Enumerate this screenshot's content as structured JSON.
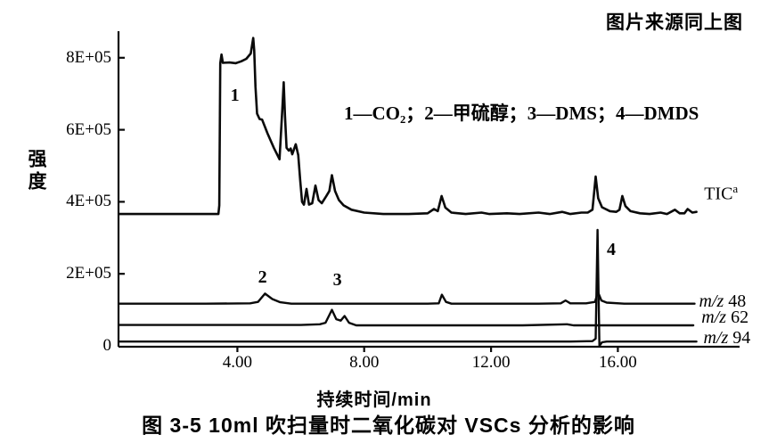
{
  "figure": {
    "source_note": "图片来源同上图",
    "legend": "1—CO₂；2—甲硫醇；3—DMS；4—DMDS",
    "caption": "图 3-5  10ml 吹扫量时二氧化碳对 VSCs 分析的影响"
  },
  "chart_data": {
    "type": "line",
    "title": "图 3-5 10ml 吹扫量时二氧化碳对 VSCs 分析的影响",
    "xlabel": "持续时间/min",
    "ylabel": "强度",
    "xlim": [
      0.25,
      19.9
    ],
    "ylim_counts": [
      0,
      880000
    ],
    "y_multiplier": 100000,
    "grid": false,
    "legend_position": "top-center-inside",
    "xticks": {
      "values": [
        4,
        8,
        12,
        16
      ],
      "labels": [
        "4.00",
        "8.00",
        "12.00",
        "16.00"
      ]
    },
    "yticks": {
      "values": [
        0,
        2,
        4,
        6,
        8
      ],
      "labels": [
        "0",
        "2E+05",
        "4E+05",
        "6E+05",
        "8E+05"
      ]
    },
    "peak_annotations": [
      {
        "label": "1",
        "compound": "CO₂",
        "t": 3.95,
        "intensity": 6.9
      },
      {
        "label": "2",
        "compound": "甲硫醇",
        "t": 4.82,
        "intensity": 1.85
      },
      {
        "label": "3",
        "compound": "DMS",
        "t": 7.18,
        "intensity": 1.78
      },
      {
        "label": "4",
        "compound": "DMDS",
        "t": 15.82,
        "intensity": 2.62
      }
    ],
    "series": [
      {
        "id": "tic",
        "label": {
          "text": "TIC",
          "sup": "a"
        },
        "label_pos": [
          18.72,
          4.35
        ],
        "stroke_width": 2.6,
        "points": [
          [
            0.26,
            3.66
          ],
          [
            1.0,
            3.66
          ],
          [
            2.0,
            3.66
          ],
          [
            3.0,
            3.66
          ],
          [
            3.4,
            3.66
          ],
          [
            3.43,
            3.9
          ],
          [
            3.46,
            7.85
          ],
          [
            3.5,
            8.09
          ],
          [
            3.54,
            7.86
          ],
          [
            3.75,
            7.87
          ],
          [
            3.95,
            7.85
          ],
          [
            4.12,
            7.9
          ],
          [
            4.28,
            7.97
          ],
          [
            4.42,
            8.12
          ],
          [
            4.5,
            8.55
          ],
          [
            4.53,
            8.2
          ],
          [
            4.57,
            7.2
          ],
          [
            4.62,
            6.45
          ],
          [
            4.7,
            6.3
          ],
          [
            4.78,
            6.28
          ],
          [
            4.95,
            5.9
          ],
          [
            5.15,
            5.5
          ],
          [
            5.33,
            5.18
          ],
          [
            5.42,
            6.6
          ],
          [
            5.46,
            7.32
          ],
          [
            5.5,
            6.4
          ],
          [
            5.55,
            5.5
          ],
          [
            5.62,
            5.42
          ],
          [
            5.68,
            5.48
          ],
          [
            5.73,
            5.32
          ],
          [
            5.84,
            5.6
          ],
          [
            5.92,
            5.3
          ],
          [
            5.98,
            4.6
          ],
          [
            6.04,
            4.0
          ],
          [
            6.1,
            3.92
          ],
          [
            6.18,
            4.36
          ],
          [
            6.26,
            3.92
          ],
          [
            6.36,
            3.96
          ],
          [
            6.46,
            4.45
          ],
          [
            6.56,
            4.05
          ],
          [
            6.66,
            3.96
          ],
          [
            6.8,
            4.15
          ],
          [
            6.9,
            4.3
          ],
          [
            6.98,
            4.74
          ],
          [
            7.08,
            4.3
          ],
          [
            7.2,
            4.05
          ],
          [
            7.35,
            3.9
          ],
          [
            7.6,
            3.78
          ],
          [
            8.0,
            3.7
          ],
          [
            8.6,
            3.66
          ],
          [
            9.4,
            3.66
          ],
          [
            10.0,
            3.68
          ],
          [
            10.2,
            3.8
          ],
          [
            10.32,
            3.74
          ],
          [
            10.44,
            4.16
          ],
          [
            10.56,
            3.84
          ],
          [
            10.75,
            3.7
          ],
          [
            11.2,
            3.66
          ],
          [
            11.7,
            3.7
          ],
          [
            11.95,
            3.66
          ],
          [
            12.5,
            3.68
          ],
          [
            12.9,
            3.66
          ],
          [
            13.5,
            3.7
          ],
          [
            13.85,
            3.66
          ],
          [
            14.25,
            3.72
          ],
          [
            14.5,
            3.66
          ],
          [
            14.85,
            3.7
          ],
          [
            15.05,
            3.7
          ],
          [
            15.2,
            3.78
          ],
          [
            15.3,
            4.7
          ],
          [
            15.38,
            4.1
          ],
          [
            15.5,
            3.85
          ],
          [
            15.75,
            3.74
          ],
          [
            15.95,
            3.72
          ],
          [
            16.05,
            3.78
          ],
          [
            16.14,
            4.16
          ],
          [
            16.24,
            3.88
          ],
          [
            16.4,
            3.74
          ],
          [
            16.7,
            3.68
          ],
          [
            17.0,
            3.66
          ],
          [
            17.35,
            3.7
          ],
          [
            17.55,
            3.66
          ],
          [
            17.8,
            3.78
          ],
          [
            17.95,
            3.68
          ],
          [
            18.1,
            3.68
          ],
          [
            18.2,
            3.8
          ],
          [
            18.35,
            3.7
          ],
          [
            18.48,
            3.72
          ]
        ]
      },
      {
        "id": "mz48",
        "label": {
          "italic": "m/z",
          "text": " 48"
        },
        "label_pos": [
          18.56,
          1.24
        ],
        "stroke_width": 2.4,
        "points": [
          [
            0.26,
            1.17
          ],
          [
            1.5,
            1.17
          ],
          [
            3.0,
            1.17
          ],
          [
            4.4,
            1.18
          ],
          [
            4.65,
            1.22
          ],
          [
            4.87,
            1.45
          ],
          [
            5.1,
            1.3
          ],
          [
            5.35,
            1.21
          ],
          [
            5.7,
            1.17
          ],
          [
            7.0,
            1.17
          ],
          [
            8.5,
            1.17
          ],
          [
            10.0,
            1.17
          ],
          [
            10.35,
            1.18
          ],
          [
            10.45,
            1.42
          ],
          [
            10.58,
            1.22
          ],
          [
            10.75,
            1.17
          ],
          [
            12.0,
            1.17
          ],
          [
            13.5,
            1.17
          ],
          [
            14.2,
            1.18
          ],
          [
            14.35,
            1.26
          ],
          [
            14.5,
            1.18
          ],
          [
            15.0,
            1.18
          ],
          [
            15.28,
            1.22
          ],
          [
            15.37,
            1.5
          ],
          [
            15.48,
            1.26
          ],
          [
            15.65,
            1.2
          ],
          [
            16.2,
            1.17
          ],
          [
            17.0,
            1.17
          ],
          [
            18.42,
            1.17
          ]
        ]
      },
      {
        "id": "mz62",
        "label": {
          "italic": "m/z",
          "text": " 62"
        },
        "label_pos": [
          18.64,
          0.8
        ],
        "stroke_width": 2.4,
        "points": [
          [
            0.26,
            0.58
          ],
          [
            2.0,
            0.58
          ],
          [
            4.0,
            0.58
          ],
          [
            6.0,
            0.58
          ],
          [
            6.6,
            0.6
          ],
          [
            6.78,
            0.64
          ],
          [
            6.98,
            1.0
          ],
          [
            7.12,
            0.74
          ],
          [
            7.26,
            0.7
          ],
          [
            7.38,
            0.83
          ],
          [
            7.52,
            0.64
          ],
          [
            7.75,
            0.57
          ],
          [
            9.0,
            0.57
          ],
          [
            11.0,
            0.57
          ],
          [
            13.0,
            0.57
          ],
          [
            14.4,
            0.6
          ],
          [
            14.6,
            0.57
          ],
          [
            15.36,
            0.57
          ],
          [
            16.0,
            0.57
          ],
          [
            17.0,
            0.57
          ],
          [
            18.38,
            0.57
          ]
        ]
      },
      {
        "id": "mz94",
        "label": {
          "italic": "m/z",
          "text": " 94"
        },
        "label_pos": [
          18.7,
          0.22
        ],
        "stroke_width": 2.4,
        "points": [
          [
            0.26,
            0.12
          ],
          [
            3.0,
            0.12
          ],
          [
            6.0,
            0.12
          ],
          [
            9.0,
            0.12
          ],
          [
            12.0,
            0.12
          ],
          [
            14.5,
            0.12
          ],
          [
            15.2,
            0.13
          ],
          [
            15.3,
            0.2
          ],
          [
            15.36,
            3.22
          ],
          [
            15.42,
            0.0
          ],
          [
            15.5,
            0.1
          ],
          [
            15.65,
            0.12
          ],
          [
            16.5,
            0.12
          ],
          [
            17.5,
            0.12
          ],
          [
            18.48,
            0.12
          ]
        ]
      }
    ]
  }
}
